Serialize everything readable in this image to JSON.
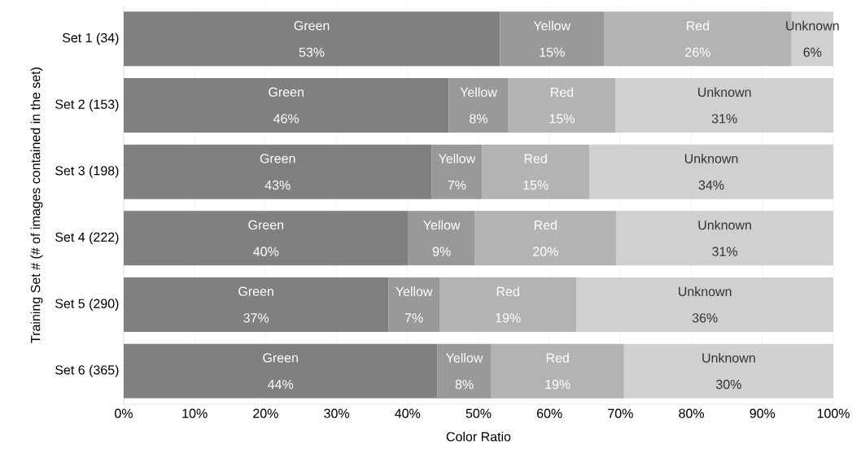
{
  "chart_data": {
    "type": "bar",
    "orientation": "horizontal",
    "stacked": true,
    "xlabel": "Color Ratio",
    "ylabel": "Training Set # (# of images contained in the set)",
    "categories": [
      "Set 1 (34)",
      "Set 2 (153)",
      "Set 3 (198)",
      "Set 4 (222)",
      "Set 5 (290)",
      "Set 6 (365)"
    ],
    "series": [
      {
        "name": "Green",
        "color": "#808080",
        "values": [
          53.0,
          45.8,
          43.4,
          40.1,
          37.3,
          44.2
        ],
        "value_labels": [
          "53%",
          "46%",
          "43%",
          "40%",
          "37%",
          "44%"
        ]
      },
      {
        "name": "Yellow",
        "color": "#999999",
        "values": [
          14.7,
          8.4,
          7.1,
          9.4,
          7.2,
          7.6
        ],
        "value_labels": [
          "15%",
          "8%",
          "7%",
          "9%",
          "7%",
          "8%"
        ]
      },
      {
        "name": "Red",
        "color": "#b3b3b3",
        "values": [
          26.4,
          15.1,
          15.1,
          19.9,
          19.3,
          18.7
        ],
        "value_labels": [
          "26%",
          "15%",
          "15%",
          "20%",
          "19%",
          "19%"
        ]
      },
      {
        "name": "Unknown",
        "color": "#d0d0d0",
        "values": [
          5.9,
          30.7,
          34.4,
          30.6,
          36.2,
          29.5
        ],
        "value_labels": [
          "6%",
          "31%",
          "34%",
          "31%",
          "36%",
          "30%"
        ]
      }
    ],
    "xlim": [
      0,
      100
    ],
    "xticks": [
      {
        "value": 0,
        "label": "0%"
      },
      {
        "value": 10,
        "label": "10%"
      },
      {
        "value": 20,
        "label": "20%"
      },
      {
        "value": 30,
        "label": "30%"
      },
      {
        "value": 40,
        "label": "40%"
      },
      {
        "value": 50,
        "label": "50%"
      },
      {
        "value": 60,
        "label": "60%"
      },
      {
        "value": 70,
        "label": "70%"
      },
      {
        "value": 80,
        "label": "80%"
      },
      {
        "value": 90,
        "label": "90%"
      },
      {
        "value": 100,
        "label": "100%"
      }
    ],
    "grid": "x"
  }
}
